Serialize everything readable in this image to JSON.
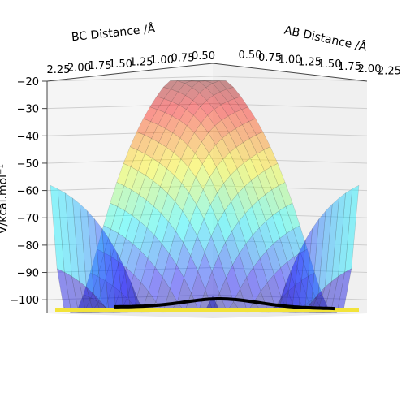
{
  "chart_data": {
    "type": "surface3d",
    "xlabel": "AB Distance /Å",
    "ylabel": "BC Distance /Å",
    "zlabel": "V/kcal.mol⁻¹",
    "x_ticks": [
      "0.50",
      "0.75",
      "1.00",
      "1.25",
      "1.50",
      "1.75",
      "2.00",
      "2.25"
    ],
    "y_ticks": [
      "2.25",
      "2.00",
      "1.75",
      "1.50",
      "1.25",
      "1.00",
      "0.75",
      "0.50"
    ],
    "z_ticks": [
      "−20",
      "−30",
      "−40",
      "−50",
      "−60",
      "−70",
      "−80",
      "−90",
      "−100"
    ],
    "x_range": [
      0.5,
      2.25
    ],
    "y_range": [
      0.5,
      2.25
    ],
    "zlim": [
      -105,
      -20
    ],
    "colormap": "jet",
    "grid": true,
    "trajectory_color": "#000000",
    "contour_plane_color": "#f2e33a",
    "plane_colors": [
      "#f5f5f5",
      "#f0f0f0",
      "#e8e8e8"
    ]
  }
}
